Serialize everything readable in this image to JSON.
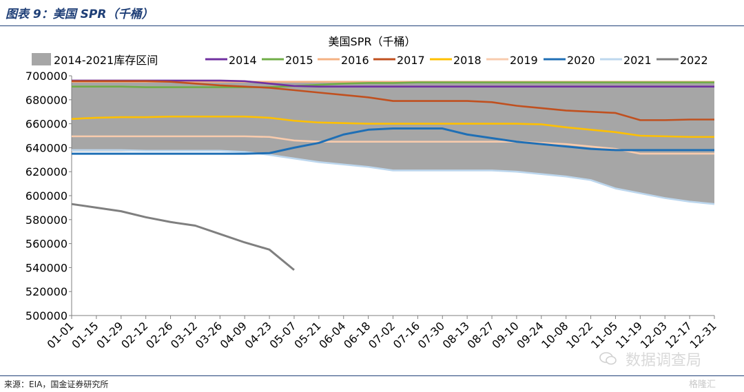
{
  "figure_title": "图表 9：美国 SPR（千桶）",
  "source": "来源：EIA，国金证券研究所",
  "watermark": "数据调查局",
  "corner_mark": "格隆汇",
  "colors": {
    "band": "#a6a6a6",
    "2014": "#7030a0",
    "2015": "#70ad47",
    "2016": "#f4b183",
    "2017": "#c0501f",
    "2018": "#ffc000",
    "2019": "#f8cbad",
    "2020": "#1f6fb5",
    "2021": "#bdd7ee",
    "2022": "#7f7f7f"
  },
  "chart_data": {
    "type": "line",
    "title": "美国SPR（千桶）",
    "xlabel": "",
    "ylabel": "",
    "ylim": [
      500000,
      700000
    ],
    "yticks": [
      500000,
      520000,
      540000,
      560000,
      580000,
      600000,
      620000,
      640000,
      660000,
      680000,
      700000
    ],
    "categories": [
      "01-01",
      "01-15",
      "01-29",
      "02-12",
      "02-26",
      "03-12",
      "03-26",
      "04-09",
      "04-23",
      "05-07",
      "05-21",
      "06-04",
      "06-18",
      "07-02",
      "07-16",
      "07-30",
      "08-13",
      "08-27",
      "09-10",
      "09-24",
      "10-08",
      "10-22",
      "11-05",
      "11-19",
      "12-03",
      "12-17",
      "12-31"
    ],
    "legend_position": "top",
    "band": {
      "name": "2014-2021库存区间",
      "upper": [
        696000,
        696000,
        696000,
        696000,
        696000,
        696000,
        696000,
        696000,
        695000,
        695000,
        695000,
        695000,
        695000,
        695000,
        695000,
        695000,
        695000,
        695000,
        695000,
        695000,
        695000,
        695000,
        695000,
        695000,
        695000,
        695000,
        695000
      ],
      "lower": [
        637000,
        637000,
        637000,
        637000,
        637000,
        637000,
        637000,
        636000,
        634000,
        631000,
        628000,
        626000,
        624000,
        621000,
        621000,
        621000,
        621000,
        621000,
        620000,
        618000,
        616000,
        613000,
        606000,
        602000,
        598000,
        595000,
        593000
      ]
    },
    "series": [
      {
        "name": "2014",
        "values": [
          696000,
          696000,
          696000,
          696000,
          696000,
          696000,
          696000,
          695500,
          693500,
          691500,
          691000,
          691000,
          691000,
          691000,
          691000,
          691000,
          691000,
          691000,
          691000,
          691000,
          691000,
          691000,
          691000,
          691000,
          691000,
          691000,
          691000
        ]
      },
      {
        "name": "2015",
        "values": [
          691000,
          691000,
          691000,
          690500,
          690500,
          690500,
          690500,
          690500,
          690500,
          691500,
          692500,
          693500,
          694000,
          694000,
          694500,
          694500,
          694500,
          694500,
          694500,
          694500,
          694500,
          694500,
          694500,
          694500,
          694500,
          694500,
          694500
        ]
      },
      {
        "name": "2016",
        "values": [
          695000,
          695000,
          695000,
          695000,
          695000,
          695000,
          695000,
          695000,
          695000,
          695000,
          695000,
          695000,
          695000,
          695000,
          695000,
          695000,
          695000,
          695000,
          695000,
          695000,
          695000,
          695000,
          695000,
          695000,
          695000,
          695000,
          695000
        ]
      },
      {
        "name": "2017",
        "values": [
          695500,
          695500,
          695500,
          695500,
          695000,
          693500,
          692000,
          691000,
          690000,
          688000,
          686000,
          684000,
          682000,
          679000,
          679000,
          679000,
          679000,
          678000,
          675000,
          673000,
          671000,
          670000,
          669000,
          663000,
          663000,
          663500,
          663500
        ]
      },
      {
        "name": "2018",
        "values": [
          664000,
          665000,
          665500,
          665500,
          666000,
          666000,
          666000,
          666000,
          665000,
          662500,
          661000,
          660500,
          660000,
          660000,
          660000,
          660000,
          660000,
          660000,
          660000,
          659500,
          657000,
          655000,
          653000,
          650000,
          649500,
          649000,
          649000
        ]
      },
      {
        "name": "2019",
        "values": [
          649500,
          649500,
          649500,
          649500,
          649500,
          649500,
          649500,
          649500,
          649000,
          646000,
          645000,
          645000,
          645000,
          645000,
          645000,
          645000,
          645000,
          645000,
          645000,
          644000,
          643000,
          641000,
          639000,
          635000,
          635000,
          635000,
          635000
        ]
      },
      {
        "name": "2020",
        "values": [
          635000,
          635000,
          635000,
          635000,
          635000,
          635000,
          635000,
          635000,
          635500,
          640000,
          644000,
          651000,
          655000,
          656000,
          656000,
          656000,
          651000,
          648000,
          645000,
          643000,
          641000,
          639000,
          638000,
          638000,
          638000,
          638000,
          638000
        ]
      },
      {
        "name": "2021",
        "values": [
          638000,
          638000,
          638000,
          637500,
          637500,
          637500,
          637500,
          636500,
          634000,
          631000,
          628000,
          626000,
          624000,
          621000,
          621000,
          621000,
          621000,
          621000,
          620000,
          618000,
          616000,
          613000,
          606000,
          602000,
          598000,
          595000,
          593000
        ]
      },
      {
        "name": "2022",
        "values": [
          593000,
          590000,
          587000,
          582000,
          578000,
          575000,
          568000,
          561000,
          555000,
          538000,
          null,
          null,
          null,
          null,
          null,
          null,
          null,
          null,
          null,
          null,
          null,
          null,
          null,
          null,
          null,
          null,
          null
        ]
      }
    ]
  }
}
